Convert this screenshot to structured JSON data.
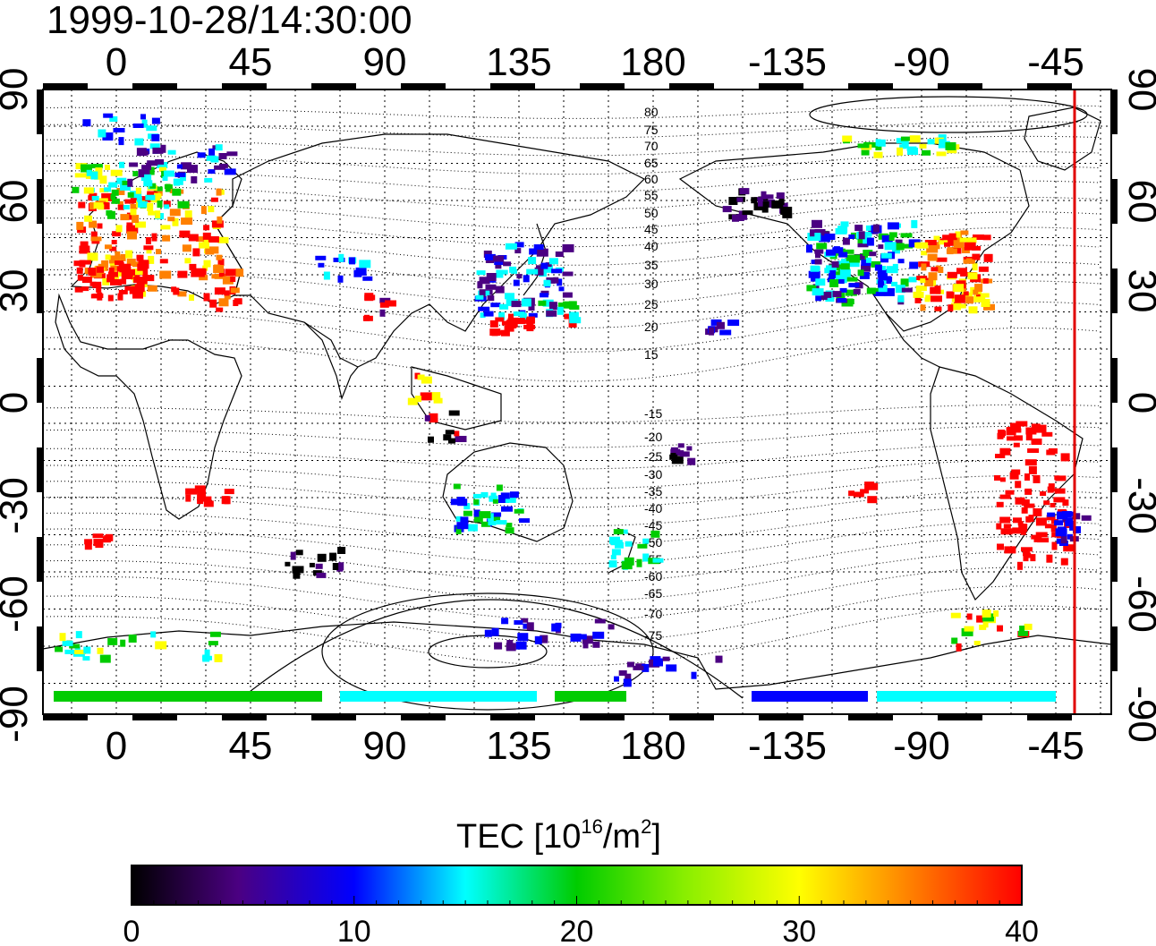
{
  "title": "1999-10-28/14:30:00",
  "map": {
    "top_lon_labels": [
      "0",
      "45",
      "90",
      "135",
      "180",
      "-135",
      "-90",
      "-45"
    ],
    "bottom_lon_labels": [
      "0",
      "45",
      "90",
      "135",
      "180",
      "-135",
      "-90",
      "-45"
    ],
    "left_lat_labels": [
      "90",
      "60",
      "30",
      "0",
      "-30",
      "-60",
      "-90"
    ],
    "right_lat_labels": [
      "90",
      "60",
      "30",
      "0",
      "-30",
      "-60",
      "-90"
    ],
    "magnetic_lat_labels_north": [
      "80",
      "75",
      "70",
      "65",
      "60",
      "55",
      "50",
      "45",
      "40",
      "35",
      "30",
      "25",
      "20",
      "15"
    ],
    "magnetic_lat_labels_south": [
      "-15",
      "-20",
      "-25",
      "-30",
      "-35",
      "-40",
      "-45",
      "-50",
      "-55",
      "-60",
      "-65",
      "-70",
      "-75"
    ],
    "terminator_color": "#e00000",
    "colors": {
      "c0": "#000000",
      "c5": "#4b0082",
      "c10": "#0000ff",
      "c15": "#00ffff",
      "c20": "#00cc00",
      "c30": "#ffff00",
      "c35": "#ff8000",
      "c40": "#ff0000"
    }
  },
  "colorbar": {
    "label": "TEC  [10",
    "label_sup1": "16",
    "label_mid": "/m",
    "label_sup2": "2",
    "label_end": "]",
    "tick_labels": [
      "0",
      "10",
      "20",
      "30",
      "40"
    ],
    "min": 0,
    "max": 40
  }
}
